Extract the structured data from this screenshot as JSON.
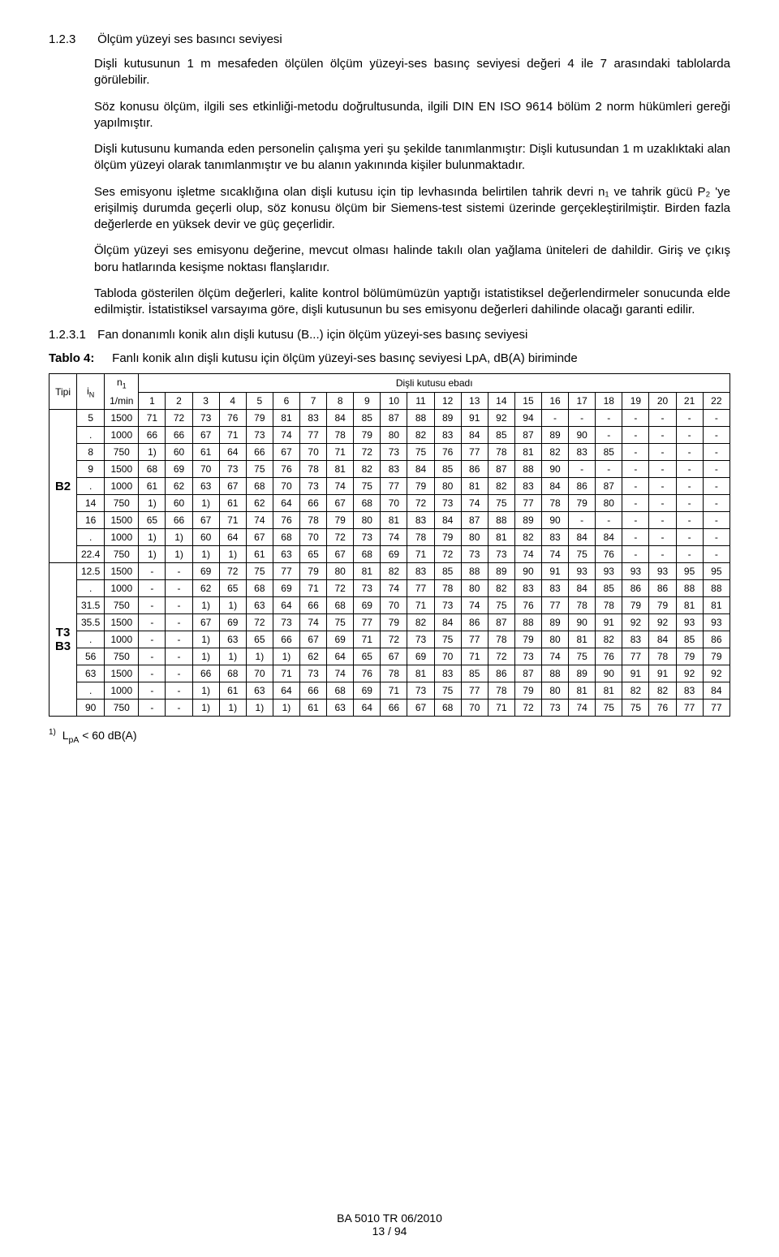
{
  "section": {
    "number": "1.2.3",
    "title": "Ölçüm yüzeyi ses basıncı seviyesi"
  },
  "paragraphs": {
    "p1": "Dişli kutusunun 1 m mesafeden ölçülen ölçüm yüzeyi-ses basınç seviyesi değeri 4 ile 7 arasındaki tablolarda görülebilir.",
    "p2": "Söz konusu ölçüm, ilgili ses etkinliği-metodu doğrultusunda, ilgili DIN EN ISO 9614 bölüm 2 norm hükümleri gereği yapılmıştır.",
    "p3": "Dişli kutusunu kumanda eden personelin çalışma yeri şu şekilde tanımlanmıştır: Dişli kutusundan 1 m uzaklıktaki alan ölçüm yüzeyi olarak tanımlanmıştır ve bu alanın yakınında kişiler bulunmaktadır.",
    "p4": "Ses emisyonu işletme sıcaklığına olan dişli kutusu için tip levhasında belirtilen tahrik devri n₁ ve tahrik gücü P₂ 'ye erişilmiş durumda geçerli olup, söz konusu ölçüm bir Siemens-test sistemi üzerinde gerçekleştirilmiştir. Birden fazla değerlerde en yüksek devir ve güç geçerlidir.",
    "p5": "Ölçüm yüzeyi ses emisyonu değerine, mevcut olması halinde takılı olan yağlama üniteleri de dahildir. Giriş ve çıkış boru hatlarında kesişme noktası flanşlarıdır.",
    "p6": "Tabloda gösterilen ölçüm değerleri, kalite kontrol bölümümüzün yaptığı istatistiksel değerlendirmeler sonucunda elde edilmiştir. İstatistiksel varsayıma göre, dişli kutusunun bu ses emisyonu değerleri dahilinde olacağı garanti edilir."
  },
  "subsection": {
    "number": "1.2.3.1",
    "title": "Fan donanımlı konik alın dişli kutusu (B...) için ölçüm yüzeyi-ses basınç seviyesi"
  },
  "table": {
    "label": "Tablo 4:",
    "caption": "Fanlı konik alın dişli kutusu için ölçüm yüzeyi-ses basınç seviyesi LpA, dB(A) biriminde",
    "header": {
      "tipi": "Tipi",
      "iN_html": "i<sub>N</sub>",
      "n1_top_html": "n<sub>1</sub>",
      "n1_bot": "1/min",
      "group": "Dişli kutusu ebadı",
      "sizes": [
        "1",
        "2",
        "3",
        "4",
        "5",
        "6",
        "7",
        "8",
        "9",
        "10",
        "11",
        "12",
        "13",
        "14",
        "15",
        "16",
        "17",
        "18",
        "19",
        "20",
        "21",
        "22"
      ]
    },
    "groups": [
      {
        "tipi": "B2",
        "rows": [
          {
            "iN": "5",
            "n1": "1500",
            "v": [
              "71",
              "72",
              "73",
              "76",
              "79",
              "81",
              "83",
              "84",
              "85",
              "87",
              "88",
              "89",
              "91",
              "92",
              "94",
              "-",
              "-",
              "-",
              "-",
              "-",
              "-",
              "-"
            ]
          },
          {
            "iN": ".",
            "n1": "1000",
            "v": [
              "66",
              "66",
              "67",
              "71",
              "73",
              "74",
              "77",
              "78",
              "79",
              "80",
              "82",
              "83",
              "84",
              "85",
              "87",
              "89",
              "90",
              "-",
              "-",
              "-",
              "-",
              "-"
            ]
          },
          {
            "iN": "8",
            "n1": "750",
            "v": [
              "1)",
              "60",
              "61",
              "64",
              "66",
              "67",
              "70",
              "71",
              "72",
              "73",
              "75",
              "76",
              "77",
              "78",
              "81",
              "82",
              "83",
              "85",
              "-",
              "-",
              "-",
              "-"
            ]
          },
          {
            "iN": "9",
            "n1": "1500",
            "v": [
              "68",
              "69",
              "70",
              "73",
              "75",
              "76",
              "78",
              "81",
              "82",
              "83",
              "84",
              "85",
              "86",
              "87",
              "88",
              "90",
              "-",
              "-",
              "-",
              "-",
              "-",
              "-"
            ]
          },
          {
            "iN": ".",
            "n1": "1000",
            "v": [
              "61",
              "62",
              "63",
              "67",
              "68",
              "70",
              "73",
              "74",
              "75",
              "77",
              "79",
              "80",
              "81",
              "82",
              "83",
              "84",
              "86",
              "87",
              "-",
              "-",
              "-",
              "-"
            ]
          },
          {
            "iN": "14",
            "n1": "750",
            "v": [
              "1)",
              "60",
              "1)",
              "61",
              "62",
              "64",
              "66",
              "67",
              "68",
              "70",
              "72",
              "73",
              "74",
              "75",
              "77",
              "78",
              "79",
              "80",
              "-",
              "-",
              "-",
              "-"
            ]
          },
          {
            "iN": "16",
            "n1": "1500",
            "v": [
              "65",
              "66",
              "67",
              "71",
              "74",
              "76",
              "78",
              "79",
              "80",
              "81",
              "83",
              "84",
              "87",
              "88",
              "89",
              "90",
              "-",
              "-",
              "-",
              "-",
              "-",
              "-"
            ]
          },
          {
            "iN": ".",
            "n1": "1000",
            "v": [
              "1)",
              "1)",
              "60",
              "64",
              "67",
              "68",
              "70",
              "72",
              "73",
              "74",
              "78",
              "79",
              "80",
              "81",
              "82",
              "83",
              "84",
              "84",
              "-",
              "-",
              "-",
              "-"
            ]
          },
          {
            "iN": "22.4",
            "n1": "750",
            "v": [
              "1)",
              "1)",
              "1)",
              "1)",
              "61",
              "63",
              "65",
              "67",
              "68",
              "69",
              "71",
              "72",
              "73",
              "73",
              "74",
              "74",
              "75",
              "76",
              "-",
              "-",
              "-",
              "-"
            ]
          }
        ]
      },
      {
        "tipi_html": "T3<br>B3",
        "rows": [
          {
            "iN": "12.5",
            "n1": "1500",
            "v": [
              "-",
              "-",
              "69",
              "72",
              "75",
              "77",
              "79",
              "80",
              "81",
              "82",
              "83",
              "85",
              "88",
              "89",
              "90",
              "91",
              "93",
              "93",
              "93",
              "93",
              "95",
              "95"
            ]
          },
          {
            "iN": ".",
            "n1": "1000",
            "v": [
              "-",
              "-",
              "62",
              "65",
              "68",
              "69",
              "71",
              "72",
              "73",
              "74",
              "77",
              "78",
              "80",
              "82",
              "83",
              "83",
              "84",
              "85",
              "86",
              "86",
              "88",
              "88"
            ]
          },
          {
            "iN": "31.5",
            "n1": "750",
            "v": [
              "-",
              "-",
              "1)",
              "1)",
              "63",
              "64",
              "66",
              "68",
              "69",
              "70",
              "71",
              "73",
              "74",
              "75",
              "76",
              "77",
              "78",
              "78",
              "79",
              "79",
              "81",
              "81"
            ]
          },
          {
            "iN": "35.5",
            "n1": "1500",
            "v": [
              "-",
              "-",
              "67",
              "69",
              "72",
              "73",
              "74",
              "75",
              "77",
              "79",
              "82",
              "84",
              "86",
              "87",
              "88",
              "89",
              "90",
              "91",
              "92",
              "92",
              "93",
              "93"
            ]
          },
          {
            "iN": ".",
            "n1": "1000",
            "v": [
              "-",
              "-",
              "1)",
              "63",
              "65",
              "66",
              "67",
              "69",
              "71",
              "72",
              "73",
              "75",
              "77",
              "78",
              "79",
              "80",
              "81",
              "82",
              "83",
              "84",
              "85",
              "86"
            ]
          },
          {
            "iN": "56",
            "n1": "750",
            "v": [
              "-",
              "-",
              "1)",
              "1)",
              "1)",
              "1)",
              "62",
              "64",
              "65",
              "67",
              "69",
              "70",
              "71",
              "72",
              "73",
              "74",
              "75",
              "76",
              "77",
              "78",
              "79",
              "79"
            ]
          },
          {
            "iN": "63",
            "n1": "1500",
            "v": [
              "-",
              "-",
              "66",
              "68",
              "70",
              "71",
              "73",
              "74",
              "76",
              "78",
              "81",
              "83",
              "85",
              "86",
              "87",
              "88",
              "89",
              "90",
              "91",
              "91",
              "92",
              "92"
            ]
          },
          {
            "iN": ".",
            "n1": "1000",
            "v": [
              "-",
              "-",
              "1)",
              "61",
              "63",
              "64",
              "66",
              "68",
              "69",
              "71",
              "73",
              "75",
              "77",
              "78",
              "79",
              "80",
              "81",
              "81",
              "82",
              "82",
              "83",
              "84"
            ]
          },
          {
            "iN": "90",
            "n1": "750",
            "v": [
              "-",
              "-",
              "1)",
              "1)",
              "1)",
              "1)",
              "61",
              "63",
              "64",
              "66",
              "67",
              "68",
              "70",
              "71",
              "72",
              "73",
              "74",
              "75",
              "75",
              "76",
              "77",
              "77"
            ]
          }
        ]
      }
    ]
  },
  "footnote": {
    "marker": "1)",
    "text_html": "L<sub>pA</sub> < 60 dB(A)"
  },
  "footer": {
    "line1": "BA 5010 TR 06/2010",
    "line2": "13 / 94"
  },
  "style": {
    "bg": "#ffffff",
    "fg": "#000000",
    "border": "#000000",
    "font": "Arial"
  }
}
